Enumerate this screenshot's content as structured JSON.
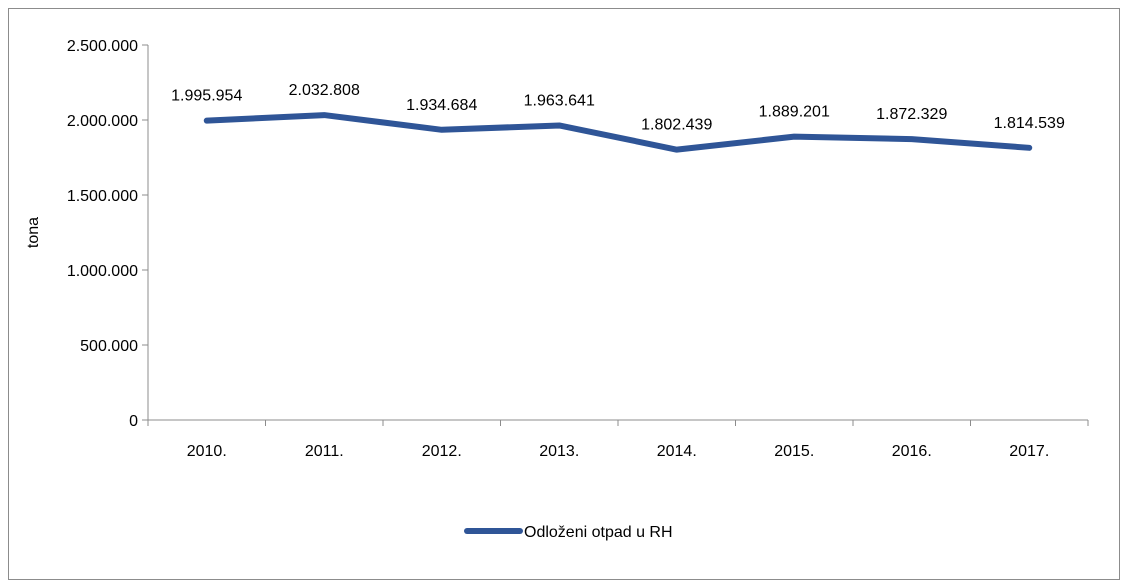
{
  "chart_data": {
    "type": "line",
    "title": "",
    "xlabel": "",
    "ylabel": "tona",
    "categories": [
      "2010.",
      "2011.",
      "2012.",
      "2013.",
      "2014.",
      "2015.",
      "2016.",
      "2017."
    ],
    "series": [
      {
        "name": "Odloženi otpad u RH",
        "values": [
          1995954,
          2032808,
          1934684,
          1963641,
          1802439,
          1889201,
          1872329,
          1814539
        ],
        "labels": [
          "1.995.954",
          "2.032.808",
          "1.934.684",
          "1.963.641",
          "1.802.439",
          "1.889.201",
          "1.872.329",
          "1.814.539"
        ],
        "color": "#2f5597"
      }
    ],
    "ylim": [
      0,
      2500000
    ],
    "yticks": [
      0,
      500000,
      1000000,
      1500000,
      2000000,
      2500000
    ],
    "ytick_labels": [
      "0",
      "500.000",
      "1.000.000",
      "1.500.000",
      "2.000.000",
      "2.500.000"
    ],
    "grid": false,
    "legend_position": "bottom"
  }
}
